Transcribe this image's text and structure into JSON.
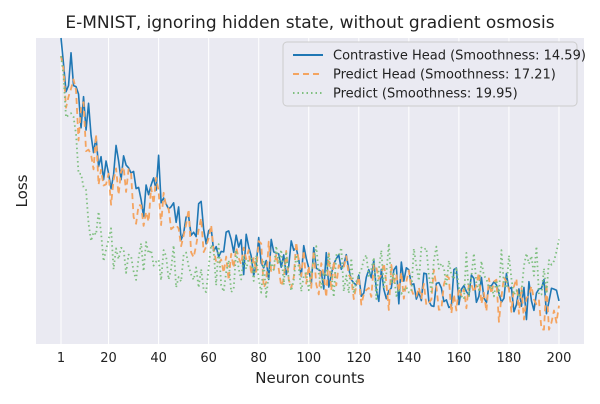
{
  "chart_data": {
    "type": "line",
    "title": "E-MNIST, ignoring hidden state, without gradient osmosis",
    "xlabel": "Neuron counts",
    "ylabel": "Loss",
    "xlim": [
      -9,
      210
    ],
    "ylim": [
      0,
      1
    ],
    "x_ticks": [
      1,
      20,
      40,
      60,
      80,
      100,
      120,
      140,
      160,
      180,
      200
    ],
    "grid": true,
    "legend_position": "top-right",
    "colors": {
      "background": "#eaeaf2",
      "grid": "#ffffff",
      "series": [
        "#1f77b4",
        "#f4a460",
        "#7fbf7f"
      ]
    },
    "series": [
      {
        "name": "Contrastive Head (Smoothness: 14.59)",
        "style": "solid",
        "control_points": [
          [
            1,
            0.99
          ],
          [
            3,
            0.84
          ],
          [
            5,
            0.9
          ],
          [
            8,
            0.78
          ],
          [
            12,
            0.72
          ],
          [
            16,
            0.62
          ],
          [
            20,
            0.55
          ],
          [
            25,
            0.6
          ],
          [
            30,
            0.5
          ],
          [
            35,
            0.45
          ],
          [
            40,
            0.55
          ],
          [
            45,
            0.42
          ],
          [
            50,
            0.4
          ],
          [
            55,
            0.42
          ],
          [
            60,
            0.38
          ],
          [
            65,
            0.33
          ],
          [
            70,
            0.3
          ],
          [
            80,
            0.28
          ],
          [
            90,
            0.27
          ],
          [
            100,
            0.26
          ],
          [
            110,
            0.24
          ],
          [
            120,
            0.22
          ],
          [
            130,
            0.2
          ],
          [
            140,
            0.2
          ],
          [
            150,
            0.18
          ],
          [
            160,
            0.18
          ],
          [
            170,
            0.17
          ],
          [
            180,
            0.16
          ],
          [
            190,
            0.14
          ],
          [
            200,
            0.15
          ]
        ],
        "amplitude": 0.07
      },
      {
        "name": "Predict Head (Smoothness: 17.21)",
        "style": "dashed",
        "control_points": [
          [
            1,
            0.97
          ],
          [
            3,
            0.8
          ],
          [
            5,
            0.88
          ],
          [
            8,
            0.74
          ],
          [
            12,
            0.68
          ],
          [
            16,
            0.6
          ],
          [
            20,
            0.52
          ],
          [
            25,
            0.55
          ],
          [
            30,
            0.47
          ],
          [
            35,
            0.42
          ],
          [
            40,
            0.48
          ],
          [
            45,
            0.38
          ],
          [
            50,
            0.37
          ],
          [
            55,
            0.35
          ],
          [
            60,
            0.33
          ],
          [
            65,
            0.3
          ],
          [
            70,
            0.28
          ],
          [
            80,
            0.26
          ],
          [
            90,
            0.26
          ],
          [
            100,
            0.25
          ],
          [
            110,
            0.22
          ],
          [
            120,
            0.2
          ],
          [
            130,
            0.19
          ],
          [
            140,
            0.19
          ],
          [
            150,
            0.17
          ],
          [
            160,
            0.17
          ],
          [
            170,
            0.15
          ],
          [
            180,
            0.14
          ],
          [
            190,
            0.12
          ],
          [
            200,
            0.13
          ]
        ],
        "amplitude": 0.08
      },
      {
        "name": "Predict (Smoothness: 19.95)",
        "style": "dotted",
        "control_points": [
          [
            1,
            0.95
          ],
          [
            3,
            0.75
          ],
          [
            5,
            0.72
          ],
          [
            8,
            0.55
          ],
          [
            12,
            0.42
          ],
          [
            16,
            0.35
          ],
          [
            20,
            0.33
          ],
          [
            25,
            0.3
          ],
          [
            30,
            0.28
          ],
          [
            35,
            0.27
          ],
          [
            40,
            0.27
          ],
          [
            45,
            0.26
          ],
          [
            50,
            0.25
          ],
          [
            55,
            0.25
          ],
          [
            60,
            0.24
          ],
          [
            65,
            0.24
          ],
          [
            70,
            0.24
          ],
          [
            80,
            0.24
          ],
          [
            90,
            0.25
          ],
          [
            100,
            0.25
          ],
          [
            110,
            0.24
          ],
          [
            120,
            0.23
          ],
          [
            130,
            0.24
          ],
          [
            140,
            0.24
          ],
          [
            150,
            0.23
          ],
          [
            160,
            0.23
          ],
          [
            170,
            0.22
          ],
          [
            180,
            0.22
          ],
          [
            190,
            0.24
          ],
          [
            200,
            0.26
          ]
        ],
        "amplitude": 0.09
      }
    ]
  }
}
